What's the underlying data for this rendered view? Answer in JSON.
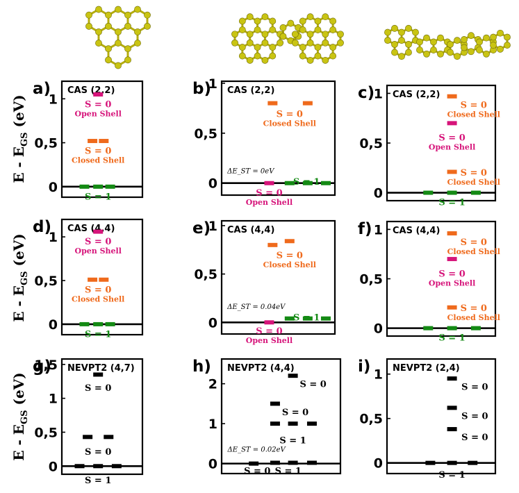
{
  "colors": {
    "open_shell": "#d6147a",
    "closed_shell": "#ef6a1c",
    "triplet": "#148a14",
    "nevpt2": "#000000",
    "atom": "#c9c413"
  },
  "molecules": [
    {
      "name": "triangulene-molecule-icon"
    },
    {
      "name": "bowtie-molecule-icon"
    },
    {
      "name": "chain-molecule-icon"
    }
  ],
  "y_axis_label": {
    "main": "E - E",
    "sub": "GS",
    "unit": " (eV)"
  },
  "panels": [
    {
      "id": "a",
      "letter": "a)",
      "method": "CAS (2,2)",
      "ylim": [
        -0.12,
        1.2
      ],
      "ticks": [
        {
          "v": 0,
          "t": "0"
        },
        {
          "v": 0.5,
          "t": "0,5"
        },
        {
          "v": 1,
          "t": "1"
        }
      ],
      "levels": [
        {
          "x": [
            0.45
          ],
          "y": 1.05,
          "c": "open_shell"
        },
        {
          "x": [
            0.38,
            0.52
          ],
          "y": 0.52,
          "c": "closed_shell"
        },
        {
          "x": [
            0.28,
            0.45,
            0.6
          ],
          "y": 0,
          "c": "triplet"
        }
      ],
      "labels": [
        {
          "x": 0.45,
          "y": 0.99,
          "lines": [
            "S = 0",
            "Open Shell"
          ],
          "c": "open_shell"
        },
        {
          "x": 0.45,
          "y": 0.46,
          "lines": [
            "S = 0",
            "Closed Shell"
          ],
          "c": "closed_shell"
        },
        {
          "x": 0.45,
          "y": -0.06,
          "lines": [
            "S = 1"
          ],
          "c": "triplet"
        }
      ],
      "delta": null
    },
    {
      "id": "b",
      "letter": "b)",
      "method": "CAS (2,2)",
      "ylim": [
        -0.12,
        1.02
      ],
      "ticks": [
        {
          "v": 0,
          "t": "0"
        },
        {
          "v": 0.5,
          "t": "0,5"
        },
        {
          "v": 1,
          "t": "1"
        }
      ],
      "levels": [
        {
          "x": [
            0.45,
            0.76
          ],
          "y": 0.8,
          "c": "closed_shell"
        },
        {
          "x": [
            0.42
          ],
          "y": 0,
          "c": "open_shell"
        },
        {
          "x": [
            0.6,
            0.76,
            0.92
          ],
          "y": 0,
          "c": "triplet"
        }
      ],
      "labels": [
        {
          "x": 0.6,
          "y": 0.74,
          "lines": [
            "S = 0",
            "Closed Shell"
          ],
          "c": "closed_shell"
        },
        {
          "x": 0.75,
          "y": 0.06,
          "lines": [
            "S = 1"
          ],
          "c": "triplet"
        },
        {
          "x": 0.42,
          "y": -0.05,
          "lines": [
            "S = 0",
            "Open Shell"
          ],
          "c": "open_shell"
        }
      ],
      "delta": {
        "x": 0.05,
        "y": 0.1,
        "text": "ΔE_ST = 0eV"
      }
    },
    {
      "id": "c",
      "letter": "c)",
      "method": "CAS (2,2)",
      "ylim": [
        -0.08,
        1.08
      ],
      "ticks": [
        {
          "v": 0,
          "t": "0"
        },
        {
          "v": 0.5,
          "t": "0,5"
        },
        {
          "v": 1,
          "t": "1"
        }
      ],
      "levels": [
        {
          "x": [
            0.6
          ],
          "y": 0.97,
          "c": "closed_shell"
        },
        {
          "x": [
            0.6
          ],
          "y": 0.7,
          "c": "open_shell"
        },
        {
          "x": [
            0.6
          ],
          "y": 0.21,
          "c": "closed_shell"
        },
        {
          "x": [
            0.38,
            0.6,
            0.82
          ],
          "y": 0,
          "c": "triplet"
        }
      ],
      "labels": [
        {
          "x": 0.8,
          "y": 0.93,
          "lines": [
            "S = 0",
            "Closed Shell"
          ],
          "c": "closed_shell"
        },
        {
          "x": 0.6,
          "y": 0.6,
          "lines": [
            "S = 0",
            "Open Shell"
          ],
          "c": "open_shell"
        },
        {
          "x": 0.8,
          "y": 0.25,
          "lines": [
            "S = 0",
            "Closed Shell"
          ],
          "c": "closed_shell"
        },
        {
          "x": 0.6,
          "y": -0.05,
          "lines": [
            "S = 1"
          ],
          "c": "triplet"
        }
      ],
      "delta": null
    },
    {
      "id": "d",
      "letter": "d)",
      "method": "CAS (4,4)",
      "ylim": [
        -0.12,
        1.2
      ],
      "ticks": [
        {
          "v": 0,
          "t": "0"
        },
        {
          "v": 0.5,
          "t": "0,5"
        },
        {
          "v": 1,
          "t": "1"
        }
      ],
      "levels": [
        {
          "x": [
            0.45
          ],
          "y": 1.06,
          "c": "open_shell"
        },
        {
          "x": [
            0.38,
            0.52
          ],
          "y": 0.51,
          "c": "closed_shell"
        },
        {
          "x": [
            0.28,
            0.45,
            0.6
          ],
          "y": 0,
          "c": "triplet"
        }
      ],
      "labels": [
        {
          "x": 0.45,
          "y": 1.0,
          "lines": [
            "S = 0",
            "Open Shell"
          ],
          "c": "open_shell"
        },
        {
          "x": 0.45,
          "y": 0.45,
          "lines": [
            "S = 0",
            "Closed Shell"
          ],
          "c": "closed_shell"
        },
        {
          "x": 0.45,
          "y": -0.06,
          "lines": [
            "S = 1"
          ],
          "c": "triplet"
        }
      ],
      "delta": null
    },
    {
      "id": "e",
      "letter": "e)",
      "method": "CAS (4,4)",
      "ylim": [
        -0.12,
        1.05
      ],
      "ticks": [
        {
          "v": 0,
          "t": "0"
        },
        {
          "v": 0.5,
          "t": "0,5"
        },
        {
          "v": 1,
          "t": "1"
        }
      ],
      "levels": [
        {
          "x": [
            0.45
          ],
          "y": 0.8,
          "c": "closed_shell"
        },
        {
          "x": [
            0.6
          ],
          "y": 0.84,
          "c": "closed_shell"
        },
        {
          "x": [
            0.42
          ],
          "y": 0,
          "c": "open_shell"
        },
        {
          "x": [
            0.6,
            0.76,
            0.92
          ],
          "y": 0.04,
          "c": "triplet"
        }
      ],
      "labels": [
        {
          "x": 0.6,
          "y": 0.74,
          "lines": [
            "S = 0",
            "Closed Shell"
          ],
          "c": "closed_shell"
        },
        {
          "x": 0.75,
          "y": 0.1,
          "lines": [
            "S = 1"
          ],
          "c": "triplet"
        },
        {
          "x": 0.42,
          "y": -0.04,
          "lines": [
            "S = 0",
            "Open Shell"
          ],
          "c": "open_shell"
        }
      ],
      "delta": {
        "x": 0.05,
        "y": 0.14,
        "text": "ΔE_ST = 0.04eV"
      }
    },
    {
      "id": "f",
      "letter": "f)",
      "method": "CAS (4,4)",
      "ylim": [
        -0.08,
        1.08
      ],
      "ticks": [
        {
          "v": 0,
          "t": "0"
        },
        {
          "v": 0.5,
          "t": "0,5"
        },
        {
          "v": 1,
          "t": "1"
        }
      ],
      "levels": [
        {
          "x": [
            0.6
          ],
          "y": 0.96,
          "c": "closed_shell"
        },
        {
          "x": [
            0.6
          ],
          "y": 0.7,
          "c": "open_shell"
        },
        {
          "x": [
            0.6
          ],
          "y": 0.21,
          "c": "closed_shell"
        },
        {
          "x": [
            0.38,
            0.6,
            0.82
          ],
          "y": 0,
          "c": "triplet"
        }
      ],
      "labels": [
        {
          "x": 0.8,
          "y": 0.92,
          "lines": [
            "S = 0",
            "Closed Shell"
          ],
          "c": "closed_shell"
        },
        {
          "x": 0.6,
          "y": 0.6,
          "lines": [
            "S = 0",
            "Open Shell"
          ],
          "c": "open_shell"
        },
        {
          "x": 0.8,
          "y": 0.25,
          "lines": [
            "S = 0",
            "Closed Shell"
          ],
          "c": "closed_shell"
        },
        {
          "x": 0.6,
          "y": -0.05,
          "lines": [
            "S = 1"
          ],
          "c": "triplet"
        }
      ],
      "delta": null
    },
    {
      "id": "g",
      "letter": "g)",
      "method": "NEVPT2 (4,7)",
      "ylim": [
        -0.12,
        1.58
      ],
      "ticks": [
        {
          "v": 0,
          "t": "0"
        },
        {
          "v": 0.5,
          "t": "0,5"
        },
        {
          "v": 1,
          "t": "1"
        },
        {
          "v": 1.5,
          "t": "1,5"
        }
      ],
      "levels": [
        {
          "x": [
            0.45
          ],
          "y": 1.35,
          "c": "nevpt2"
        },
        {
          "x": [
            0.32,
            0.58
          ],
          "y": 0.43,
          "c": "nevpt2"
        },
        {
          "x": [
            0.22,
            0.45,
            0.68
          ],
          "y": 0,
          "c": "nevpt2"
        }
      ],
      "labels": [
        {
          "x": 0.45,
          "y": 1.22,
          "lines": [
            "S = 0"
          ],
          "c": "nevpt2"
        },
        {
          "x": 0.45,
          "y": 0.28,
          "lines": [
            "S = 0"
          ],
          "c": "nevpt2"
        },
        {
          "x": 0.45,
          "y": -0.14,
          "lines": [
            "S = 1"
          ],
          "c": "nevpt2"
        }
      ],
      "delta": null
    },
    {
      "id": "h",
      "letter": "h)",
      "method": "NEVPT2 (4,4)",
      "ylim": [
        -0.25,
        2.62
      ],
      "ticks": [
        {
          "v": 0,
          "t": "0"
        },
        {
          "v": 1,
          "t": "1"
        },
        {
          "v": 2,
          "t": "2"
        }
      ],
      "levels": [
        {
          "x": [
            0.6
          ],
          "y": 2.2,
          "c": "nevpt2"
        },
        {
          "x": [
            0.45
          ],
          "y": 1.5,
          "c": "nevpt2"
        },
        {
          "x": [
            0.45,
            0.6,
            0.76
          ],
          "y": 1.0,
          "c": "nevpt2"
        },
        {
          "x": [
            0.27
          ],
          "y": 0,
          "c": "nevpt2"
        },
        {
          "x": [
            0.45,
            0.6,
            0.76
          ],
          "y": 0.02,
          "c": "nevpt2"
        }
      ],
      "labels": [
        {
          "x": 0.77,
          "y": 2.11,
          "lines": [
            "S = 0"
          ],
          "c": "nevpt2"
        },
        {
          "x": 0.62,
          "y": 1.4,
          "lines": [
            "S = 0"
          ],
          "c": "nevpt2"
        },
        {
          "x": 0.6,
          "y": 0.7,
          "lines": [
            "S = 1"
          ],
          "c": "nevpt2"
        },
        {
          "x": 0.3,
          "y": -0.07,
          "lines": [
            "S = 0"
          ],
          "c": "nevpt2"
        },
        {
          "x": 0.56,
          "y": -0.07,
          "lines": [
            "S = 1"
          ],
          "c": "nevpt2"
        }
      ],
      "delta": {
        "x": 0.05,
        "y": 0.3,
        "text": "ΔE_ST = 0.02eV"
      }
    },
    {
      "id": "i",
      "letter": "i)",
      "method": "NEVPT2 (2,4)",
      "ylim": [
        -0.12,
        1.17
      ],
      "ticks": [
        {
          "v": 0,
          "t": "0"
        },
        {
          "v": 0.5,
          "t": "0,5"
        },
        {
          "v": 1,
          "t": "1"
        }
      ],
      "levels": [
        {
          "x": [
            0.6
          ],
          "y": 0.95,
          "c": "nevpt2"
        },
        {
          "x": [
            0.6
          ],
          "y": 0.62,
          "c": "nevpt2"
        },
        {
          "x": [
            0.6
          ],
          "y": 0.38,
          "c": "nevpt2"
        },
        {
          "x": [
            0.4,
            0.6,
            0.79
          ],
          "y": 0,
          "c": "nevpt2"
        }
      ],
      "labels": [
        {
          "x": 0.81,
          "y": 0.91,
          "lines": [
            "S = 0"
          ],
          "c": "nevpt2"
        },
        {
          "x": 0.81,
          "y": 0.58,
          "lines": [
            "S = 0"
          ],
          "c": "nevpt2"
        },
        {
          "x": 0.81,
          "y": 0.34,
          "lines": [
            "S = 0"
          ],
          "c": "nevpt2"
        },
        {
          "x": 0.6,
          "y": -0.08,
          "lines": [
            "S = 1"
          ],
          "c": "nevpt2"
        }
      ],
      "delta": null
    }
  ],
  "chart_data": {
    "type": "energy-level diagram",
    "title": "",
    "ylabel": "E - E_GS (eV)",
    "panels": [
      {
        "panel": "a)",
        "method": "CAS (2,2)",
        "states": [
          {
            "spin": "S = 0",
            "character": "Open Shell",
            "E": 1.05
          },
          {
            "spin": "S = 0",
            "character": "Closed Shell",
            "E": 0.52
          },
          {
            "spin": "S = 1",
            "E": 0
          }
        ]
      },
      {
        "panel": "b)",
        "method": "CAS (2,2)",
        "states": [
          {
            "spin": "S = 0",
            "character": "Closed Shell",
            "E": 0.8
          },
          {
            "spin": "S = 1",
            "E": 0
          },
          {
            "spin": "S = 0",
            "character": "Open Shell",
            "E": 0
          }
        ],
        "delta_EST_eV": 0
      },
      {
        "panel": "c)",
        "method": "CAS (2,2)",
        "states": [
          {
            "spin": "S = 0",
            "character": "Closed Shell",
            "E": 0.97
          },
          {
            "spin": "S = 0",
            "character": "Open Shell",
            "E": 0.7
          },
          {
            "spin": "S = 0",
            "character": "Closed Shell",
            "E": 0.21
          },
          {
            "spin": "S = 1",
            "E": 0
          }
        ]
      },
      {
        "panel": "d)",
        "method": "CAS (4,4)",
        "states": [
          {
            "spin": "S = 0",
            "character": "Open Shell",
            "E": 1.06
          },
          {
            "spin": "S = 0",
            "character": "Closed Shell",
            "E": 0.51
          },
          {
            "spin": "S = 1",
            "E": 0
          }
        ]
      },
      {
        "panel": "e)",
        "method": "CAS (4,4)",
        "states": [
          {
            "spin": "S = 0",
            "character": "Closed Shell",
            "E": 0.82
          },
          {
            "spin": "S = 1",
            "E": 0.04
          },
          {
            "spin": "S = 0",
            "character": "Open Shell",
            "E": 0
          }
        ],
        "delta_EST_eV": 0.04
      },
      {
        "panel": "f)",
        "method": "CAS (4,4)",
        "states": [
          {
            "spin": "S = 0",
            "character": "Closed Shell",
            "E": 0.96
          },
          {
            "spin": "S = 0",
            "character": "Open Shell",
            "E": 0.7
          },
          {
            "spin": "S = 0",
            "character": "Closed Shell",
            "E": 0.21
          },
          {
            "spin": "S = 1",
            "E": 0
          }
        ]
      },
      {
        "panel": "g)",
        "method": "NEVPT2 (4,7)",
        "states": [
          {
            "spin": "S = 0",
            "E": 1.35
          },
          {
            "spin": "S = 0",
            "E": 0.43
          },
          {
            "spin": "S = 1",
            "E": 0
          }
        ]
      },
      {
        "panel": "h)",
        "method": "NEVPT2 (4,4)",
        "states": [
          {
            "spin": "S = 0",
            "E": 2.2
          },
          {
            "spin": "S = 0",
            "E": 1.5
          },
          {
            "spin": "S = 1",
            "E": 1.0
          },
          {
            "spin": "S = 0",
            "E": 0
          },
          {
            "spin": "S = 1",
            "E": 0.02
          }
        ],
        "delta_EST_eV": 0.02
      },
      {
        "panel": "i)",
        "method": "NEVPT2 (2,4)",
        "states": [
          {
            "spin": "S = 0",
            "E": 0.95
          },
          {
            "spin": "S = 0",
            "E": 0.62
          },
          {
            "spin": "S = 0",
            "E": 0.38
          },
          {
            "spin": "S = 1",
            "E": 0
          }
        ]
      }
    ]
  }
}
